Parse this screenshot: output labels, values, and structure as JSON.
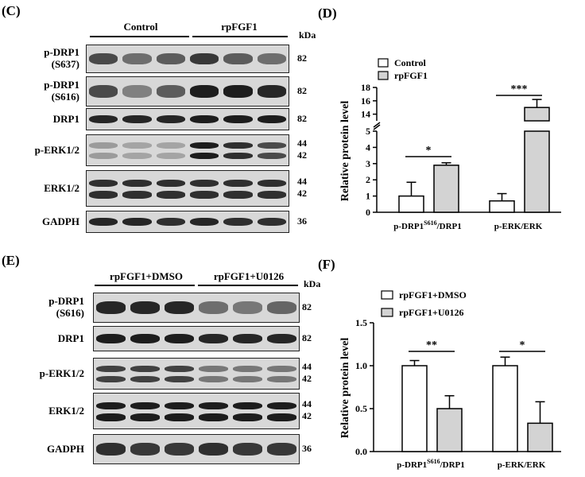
{
  "panels": {
    "C": {
      "letter": "(C)",
      "groups": [
        "Control",
        "rpFGF1"
      ],
      "kda_header": "kDa",
      "rows": [
        {
          "label": "p-DRP1\n(S637)",
          "kda": "82",
          "intensity": [
            0.7,
            0.5,
            0.6,
            0.8,
            0.6,
            0.5
          ]
        },
        {
          "label": "p-DRP1\n(S616)",
          "kda": "82",
          "intensity": [
            0.7,
            0.4,
            0.6,
            0.95,
            0.95,
            0.9
          ]
        },
        {
          "label": "DRP1",
          "kda": "82",
          "intensity": [
            0.9,
            0.9,
            0.9,
            0.95,
            0.95,
            0.95
          ]
        },
        {
          "label": "p-ERK1/2",
          "kda": "44\n42",
          "intensity": [
            0.25,
            0.2,
            0.2,
            0.95,
            0.85,
            0.7
          ]
        },
        {
          "label": "ERK1/2",
          "kda": "44\n42",
          "intensity": [
            0.85,
            0.85,
            0.85,
            0.85,
            0.85,
            0.85
          ]
        },
        {
          "label": "GADPH",
          "kda": "36",
          "intensity": [
            0.9,
            0.9,
            0.85,
            0.9,
            0.85,
            0.85
          ]
        }
      ]
    },
    "E": {
      "letter": "(E)",
      "groups": [
        "rpFGF1+DMSO",
        "rpFGF1+U0126"
      ],
      "kda_header": "kDa",
      "rows": [
        {
          "label": "p-DRP1\n(S616)",
          "kda": "82",
          "intensity": [
            0.9,
            0.9,
            0.9,
            0.5,
            0.45,
            0.55
          ]
        },
        {
          "label": "DRP1",
          "kda": "82",
          "intensity": [
            0.95,
            0.95,
            0.95,
            0.9,
            0.9,
            0.9
          ]
        },
        {
          "label": "p-ERK1/2",
          "kda": "44\n42",
          "intensity": [
            0.75,
            0.75,
            0.75,
            0.45,
            0.45,
            0.45
          ]
        },
        {
          "label": "ERK1/2",
          "kda": "44\n42",
          "intensity": [
            0.95,
            0.95,
            0.95,
            0.95,
            0.95,
            0.95
          ]
        },
        {
          "label": "GADPH",
          "kda": "36",
          "intensity": [
            0.85,
            0.8,
            0.8,
            0.85,
            0.8,
            0.8
          ]
        }
      ]
    }
  },
  "chart_data": [
    {
      "panel": "(D)",
      "type": "bar",
      "ylabel": "Relative protein level",
      "categories": [
        "p-DRP1S616/DRP1",
        "p-ERK/ERK"
      ],
      "category_display": [
        {
          "main": "p-DRP1",
          "sup": "S616",
          "rest": "/DRP1"
        },
        {
          "main": "p-ERK/ERK",
          "sup": "",
          "rest": ""
        }
      ],
      "series": [
        {
          "name": "Control",
          "values": [
            1.0,
            0.7
          ],
          "errors": [
            0.85,
            0.45
          ],
          "color": "#ffffff"
        },
        {
          "name": "rpFGF1",
          "values": [
            2.9,
            15.0
          ],
          "errors": [
            0.15,
            1.2
          ],
          "color": "#d3d3d3"
        }
      ],
      "broken_axis": true,
      "lower_ylim": [
        0,
        5
      ],
      "upper_ylim": [
        13,
        18
      ],
      "lower_ticks": [
        "0",
        "1",
        "2",
        "3",
        "4",
        "5"
      ],
      "upper_ticks": [
        "14",
        "16",
        "18"
      ],
      "significance": [
        "*",
        "***"
      ],
      "legend_position": "top-left"
    },
    {
      "panel": "(F)",
      "type": "bar",
      "ylabel": "Relative protein level",
      "categories": [
        "p-DRP1S616/DRP1",
        "p-ERK/ERK"
      ],
      "category_display": [
        {
          "main": "p-DRP1",
          "sup": "S616",
          "rest": "/DRP1"
        },
        {
          "main": "p-ERK/ERK",
          "sup": "",
          "rest": ""
        }
      ],
      "series": [
        {
          "name": "rpFGF1+DMSO",
          "values": [
            1.0,
            1.0
          ],
          "errors": [
            0.06,
            0.1
          ],
          "color": "#ffffff"
        },
        {
          "name": "rpFGF1+U0126",
          "values": [
            0.5,
            0.33
          ],
          "errors": [
            0.15,
            0.25
          ],
          "color": "#d3d3d3"
        }
      ],
      "ylim": [
        0,
        1.5
      ],
      "ticks": [
        "0.0",
        "0.5",
        "1.0",
        "1.5"
      ],
      "significance": [
        "**",
        "*"
      ],
      "legend_position": "top-left"
    }
  ]
}
